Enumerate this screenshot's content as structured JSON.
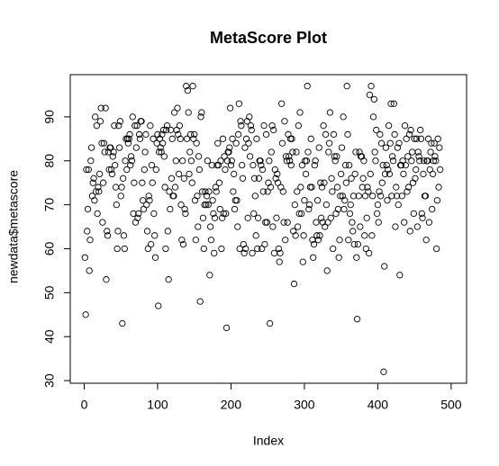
{
  "chart_data": {
    "type": "scatter",
    "title": "MetaScore Plot",
    "x_label": "Index",
    "y_label": "newdata$metascore",
    "values": [
      58,
      45,
      78,
      64,
      69,
      78,
      55,
      62,
      80,
      83,
      72,
      75,
      76,
      71,
      90,
      73,
      88,
      68,
      74,
      73,
      77,
      89,
      92,
      84,
      66,
      75,
      84,
      82,
      92,
      53,
      64,
      63,
      82,
      78,
      83,
      83,
      78,
      77,
      81,
      82,
      88,
      79,
      74,
      70,
      60,
      64,
      88,
      83,
      89,
      72,
      74,
      43,
      76,
      63,
      60,
      80,
      85,
      78,
      85,
      84,
      85,
      86,
      79,
      81,
      80,
      90,
      68,
      75,
      88,
      66,
      83,
      88,
      67,
      68,
      86,
      85,
      89,
      89,
      75,
      71,
      69,
      78,
      82,
      86,
      70,
      64,
      60,
      72,
      71,
      88,
      61,
      79,
      75,
      85,
      68,
      63,
      58,
      78,
      84,
      86,
      47,
      82,
      85,
      83,
      82,
      86,
      84,
      87,
      81,
      74,
      60,
      87,
      88,
      64,
      53,
      73,
      69,
      87,
      76,
      85,
      72,
      72,
      91,
      74,
      80,
      87,
      92,
      86,
      77,
      88,
      85,
      70,
      62,
      80,
      61,
      76,
      69,
      68,
      97,
      85,
      96,
      91,
      77,
      82,
      86,
      80,
      75,
      97,
      85,
      86,
      71,
      62,
      84,
      72,
      65,
      81,
      78,
      48,
      90,
      91,
      73,
      67,
      60,
      70,
      73,
      70,
      72,
      80,
      70,
      73,
      54,
      65,
      62,
      79,
      71,
      68,
      59,
      67,
      74,
      73,
      79,
      84,
      79,
      75,
      69,
      80,
      60,
      67,
      85,
      68,
      81,
      78,
      68,
      42,
      80,
      82,
      82,
      83,
      92,
      79,
      80,
      85,
      73,
      77,
      69,
      71,
      84,
      71,
      65,
      86,
      93,
      60,
      89,
      88,
      79,
      76,
      61,
      59,
      83,
      60,
      85,
      89,
      67,
      84,
      90,
      81,
      88,
      87,
      59,
      79,
      68,
      76,
      72,
      63,
      85,
      60,
      67,
      76,
      80,
      80,
      79,
      60,
      78,
      73,
      88,
      61,
      66,
      86,
      66,
      73,
      75,
      80,
      43,
      74,
      82,
      88,
      65,
      87,
      59,
      78,
      76,
      67,
      77,
      75,
      60,
      57,
      59,
      74,
      93,
      84,
      73,
      66,
      89,
      62,
      81,
      80,
      66,
      86,
      81,
      80,
      85,
      79,
      85,
      82,
      64,
      52,
      70,
      63,
      82,
      73,
      65,
      88,
      68,
      91,
      74,
      68,
      79,
      57,
      63,
      71,
      80,
      77,
      80,
      97,
      82,
      69,
      70,
      74,
      85,
      74,
      62,
      58,
      61,
      79,
      80,
      66,
      63,
      71,
      62,
      83,
      63,
      75,
      67,
      74,
      66,
      88,
      75,
      65,
      86,
      70,
      55,
      66,
      82,
      84,
      91,
      67,
      76,
      73,
      60,
      86,
      81,
      80,
      68,
      81,
      74,
      69,
      58,
      62,
      72,
      77,
      83,
      72,
      90,
      69,
      71,
      79,
      75,
      97,
      86,
      62,
      79,
      68,
      70,
      76,
      66,
      64,
      72,
      61,
      77,
      82,
      58,
      44,
      61,
      72,
      82,
      65,
      81,
      81,
      74,
      76,
      80,
      63,
      72,
      60,
      67,
      74,
      73,
      59,
      95,
      77,
      97,
      63,
      72,
      90,
      94,
      82,
      80,
      87,
      68,
      70,
      66,
      73,
      86,
      72,
      84,
      75,
      79,
      32,
      56,
      77,
      83,
      79,
      71,
      78,
      88,
      77,
      84,
      93,
      72,
      81,
      80,
      93,
      86,
      65,
      74,
      72,
      83,
      70,
      84,
      54,
      79,
      79,
      72,
      80,
      77,
      66,
      88,
      79,
      85,
      73,
      81,
      74,
      86,
      64,
      87,
      80,
      82,
      75,
      68,
      85,
      76,
      78,
      85,
      65,
      82,
      81,
      80,
      87,
      85,
      68,
      67,
      77,
      80,
      72,
      72,
      62,
      80,
      80,
      85,
      66,
      78,
      82,
      84,
      69,
      77,
      80,
      84,
      81,
      80,
      60,
      71,
      85,
      74,
      83,
      78
    ],
    "xlim": [
      -19,
      521
    ],
    "ylim": [
      29.4,
      99.6
    ],
    "xticks": [
      0,
      100,
      200,
      300,
      400,
      500
    ],
    "yticks": [
      30,
      40,
      50,
      60,
      70,
      80,
      90
    ],
    "color": "#000000"
  }
}
